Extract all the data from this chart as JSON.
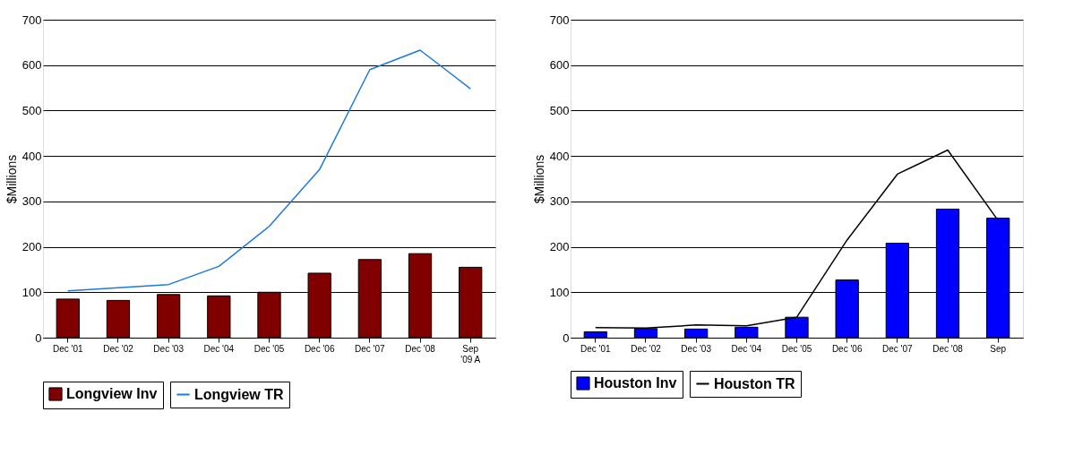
{
  "chart_data": [
    {
      "type": "bar",
      "categories": [
        "Dec '01",
        "Dec '02",
        "Dec '03",
        "Dec '04",
        "Dec '05",
        "Dec '06",
        "Dec '07",
        "Dec '08",
        "Sep\n'09 A"
      ],
      "ylabel": "$Millions",
      "ylim": [
        0,
        700
      ],
      "yticks": [
        0,
        100,
        200,
        300,
        400,
        500,
        600,
        700
      ],
      "grid": "y",
      "legend": "bottom",
      "series": [
        {
          "name": "Longview Inv",
          "color": "#800000",
          "values": [
            85,
            82,
            95,
            92,
            100,
            142,
            172,
            185,
            155
          ]
        },
        {
          "name": "Longview TR",
          "type": "line",
          "color": "#1e78e0",
          "values": [
            103,
            110,
            117,
            157,
            245,
            370,
            590,
            633,
            548
          ]
        }
      ]
    },
    {
      "type": "bar",
      "categories": [
        "Dec '01",
        "Dec '02",
        "Dec '03",
        "Dec '04",
        "Dec '05",
        "Dec '06",
        "Dec '07",
        "Dec '08",
        "Sep"
      ],
      "ylabel": "$Millions",
      "ylim": [
        0,
        700
      ],
      "yticks": [
        0,
        100,
        200,
        300,
        400,
        500,
        600,
        700
      ],
      "grid": "y",
      "legend": "bottom",
      "series": [
        {
          "name": "Houston Inv",
          "color": "#0000ff",
          "values": [
            13,
            20,
            19,
            23,
            45,
            127,
            208,
            283,
            263
          ]
        },
        {
          "name": "Houston TR",
          "type": "line",
          "color": "#000000",
          "values": [
            22,
            21,
            28,
            26,
            45,
            215,
            360,
            413,
            258
          ]
        }
      ]
    }
  ]
}
